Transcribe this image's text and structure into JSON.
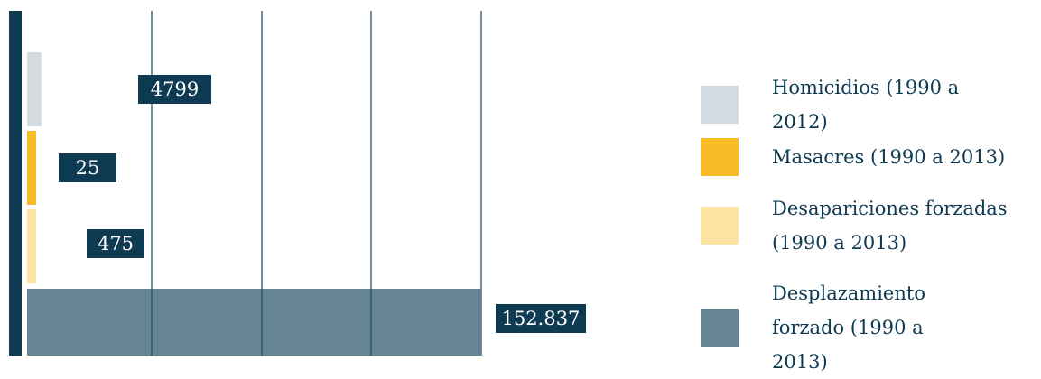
{
  "colors": {
    "axis": "#0e3a52",
    "grid": "#2d5066",
    "label_bg": "#0e3a52",
    "label_text": "#ffffff"
  },
  "chart_data": {
    "type": "bar",
    "orientation": "horizontal",
    "categories": [
      "Homicidios (1990 a 2012)",
      "Masacres (1990 a 2013)",
      "Desapariciones forzadas (1990 a 2013)",
      "Desplazamiento forzado (1990 a 2013)"
    ],
    "values": [
      4799,
      25,
      475,
      152837
    ],
    "value_labels": [
      "4799",
      "25",
      "475",
      "152.837"
    ],
    "bar_colors": [
      "#d3dbe0",
      "#f9bb26",
      "#fde3a4",
      "#658595"
    ],
    "title": "",
    "xlabel": "",
    "ylabel": "",
    "grid": true,
    "legend_position": "right"
  },
  "legend": {
    "items": [
      {
        "label": "Homicidios (1990 a 2012)",
        "color": "#d3dbe0"
      },
      {
        "label": "Masacres (1990 a 2013)",
        "color": "#f9bb26"
      },
      {
        "label": "Desapariciones forzadas (1990 a 2013)",
        "color": "#fde3a4"
      },
      {
        "label": "Desplazamiento forzado (1990 a 2013)",
        "color": "#658595"
      }
    ]
  }
}
